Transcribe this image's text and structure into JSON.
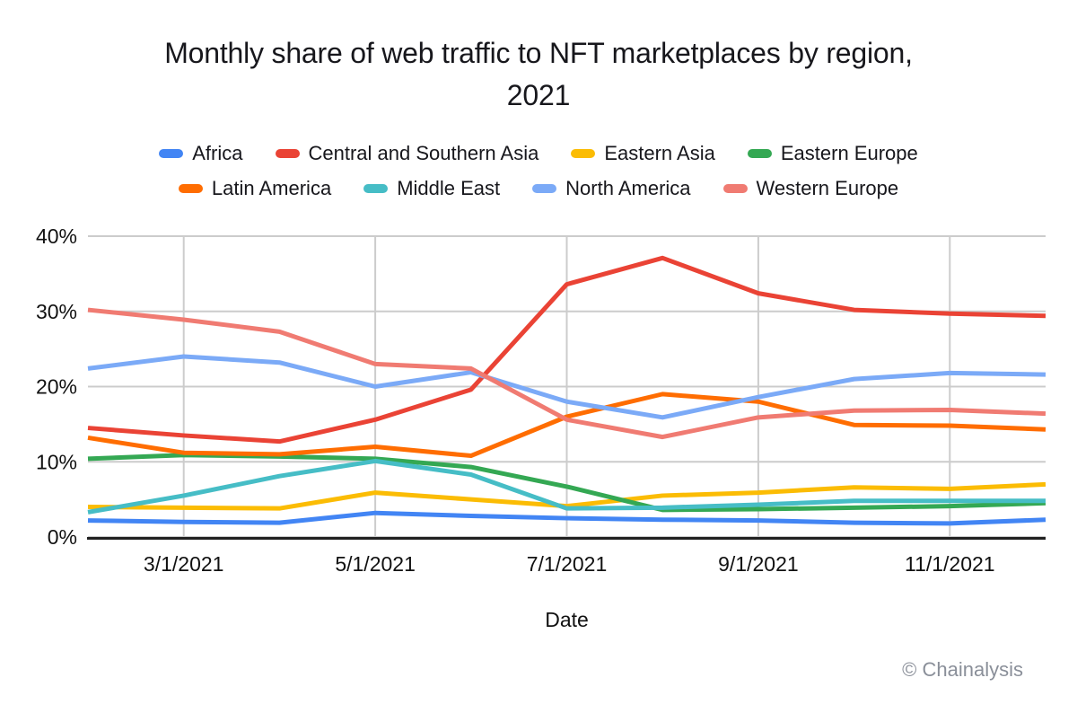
{
  "title": {
    "line1": "Monthly share of web traffic to NFT marketplaces by region,",
    "line2": "2021"
  },
  "footer": {
    "credit": "© Chainalysis"
  },
  "chart_data": {
    "type": "line",
    "title": "Monthly share of web traffic to NFT marketplaces by region, 2021",
    "xlabel": "Date",
    "ylabel": "",
    "ylim": [
      0,
      40
    ],
    "grid": true,
    "legend_position": "top",
    "x": [
      "2/1/2021",
      "3/1/2021",
      "4/1/2021",
      "5/1/2021",
      "6/1/2021",
      "7/1/2021",
      "8/1/2021",
      "9/1/2021",
      "10/1/2021",
      "11/1/2021",
      "12/1/2021"
    ],
    "x_ticks": [
      {
        "index": 1,
        "label": "3/1/2021"
      },
      {
        "index": 3,
        "label": "5/1/2021"
      },
      {
        "index": 5,
        "label": "7/1/2021"
      },
      {
        "index": 7,
        "label": "9/1/2021"
      },
      {
        "index": 9,
        "label": "11/1/2021"
      }
    ],
    "y_ticks": [
      {
        "value": 0,
        "label": "0%"
      },
      {
        "value": 10,
        "label": "10%"
      },
      {
        "value": 20,
        "label": "20%"
      },
      {
        "value": 30,
        "label": "30%"
      },
      {
        "value": 40,
        "label": "40%"
      }
    ],
    "series": [
      {
        "id": "africa",
        "name": "Africa",
        "color": "#4285F4",
        "values": [
          2.2,
          2.0,
          1.9,
          3.2,
          2.8,
          2.5,
          2.3,
          2.2,
          1.9,
          1.8,
          2.3
        ]
      },
      {
        "id": "central-and-southern-asia",
        "name": "Central and Southern Asia",
        "color": "#EA4335",
        "values": [
          14.5,
          13.5,
          12.7,
          15.6,
          19.6,
          33.6,
          37.1,
          32.4,
          30.2,
          29.7,
          29.4
        ]
      },
      {
        "id": "eastern-asia",
        "name": "Eastern Asia",
        "color": "#FBBC04",
        "values": [
          4.0,
          3.9,
          3.8,
          5.9,
          5.0,
          4.1,
          5.5,
          5.9,
          6.6,
          6.4,
          7.0
        ]
      },
      {
        "id": "eastern-europe",
        "name": "Eastern Europe",
        "color": "#34A853",
        "values": [
          10.4,
          10.9,
          10.7,
          10.4,
          9.3,
          6.7,
          3.6,
          3.7,
          3.9,
          4.1,
          4.5
        ]
      },
      {
        "id": "latin-america",
        "name": "Latin America",
        "color": "#FF6D01",
        "values": [
          13.2,
          11.2,
          11.0,
          12.0,
          10.8,
          16.0,
          19.0,
          18.0,
          14.9,
          14.8,
          14.3
        ]
      },
      {
        "id": "middle-east",
        "name": "Middle East",
        "color": "#46BDC6",
        "values": [
          3.3,
          5.5,
          8.1,
          10.1,
          8.3,
          3.8,
          3.9,
          4.3,
          4.8,
          4.8,
          4.8
        ]
      },
      {
        "id": "north-america",
        "name": "North America",
        "color": "#7BAAF7",
        "values": [
          22.4,
          24.0,
          23.2,
          20.0,
          21.9,
          18.0,
          15.9,
          18.6,
          21.0,
          21.8,
          21.6
        ]
      },
      {
        "id": "western-europe",
        "name": "Western Europe",
        "color": "#F07B72",
        "values": [
          30.2,
          28.9,
          27.3,
          23.0,
          22.4,
          15.6,
          13.3,
          15.9,
          16.8,
          16.9,
          16.4
        ]
      }
    ],
    "style": {
      "gridline_color": "#cccccc",
      "axis_line_color": "#212121",
      "tick_label_color": "#111111",
      "credit_color": "#8a8f99"
    }
  }
}
